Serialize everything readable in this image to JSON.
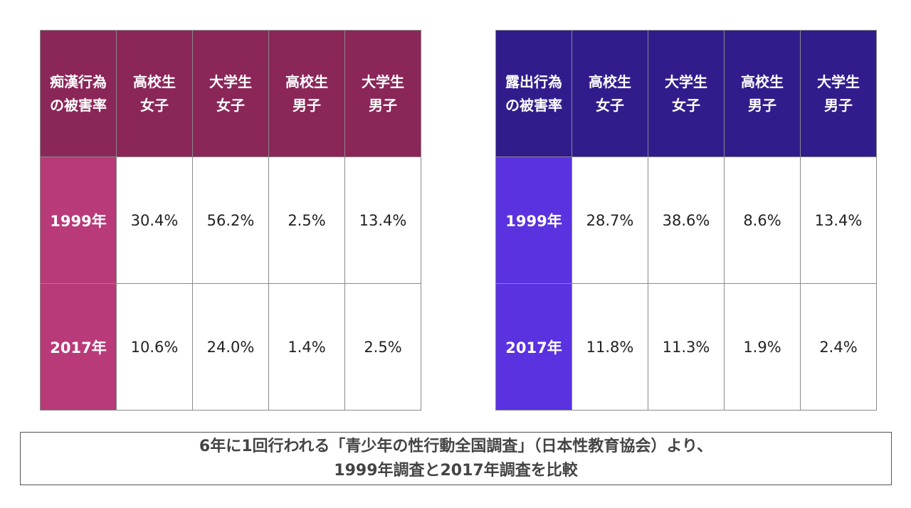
{
  "colors": {
    "left_header": "#8B2658",
    "left_row": "#B83A78",
    "right_header": "#321C8C",
    "right_row": "#5A32E0"
  },
  "tables": [
    {
      "corner": [
        "痴漢行為",
        "の被害率"
      ],
      "columns": [
        [
          "高校生",
          "女子"
        ],
        [
          "大学生",
          "女子"
        ],
        [
          "高校生",
          "男子"
        ],
        [
          "大学生",
          "男子"
        ]
      ],
      "rows": [
        {
          "label": "1999年",
          "values": [
            "30.4%",
            "56.2%",
            "2.5%",
            "13.4%"
          ]
        },
        {
          "label": "2017年",
          "values": [
            "10.6%",
            "24.0%",
            "1.4%",
            "2.5%"
          ]
        }
      ]
    },
    {
      "corner": [
        "露出行為",
        "の被害率"
      ],
      "columns": [
        [
          "高校生",
          "女子"
        ],
        [
          "大学生",
          "女子"
        ],
        [
          "高校生",
          "男子"
        ],
        [
          "大学生",
          "男子"
        ]
      ],
      "rows": [
        {
          "label": "1999年",
          "values": [
            "28.7%",
            "38.6%",
            "8.6%",
            "13.4%"
          ]
        },
        {
          "label": "2017年",
          "values": [
            "11.8%",
            "11.3%",
            "1.9%",
            "2.4%"
          ]
        }
      ]
    }
  ],
  "footer": [
    "6年に1回行われる「青少年の性行動全国調査」（日本性教育協会）より、",
    "1999年調査と2017年調査を比較"
  ]
}
